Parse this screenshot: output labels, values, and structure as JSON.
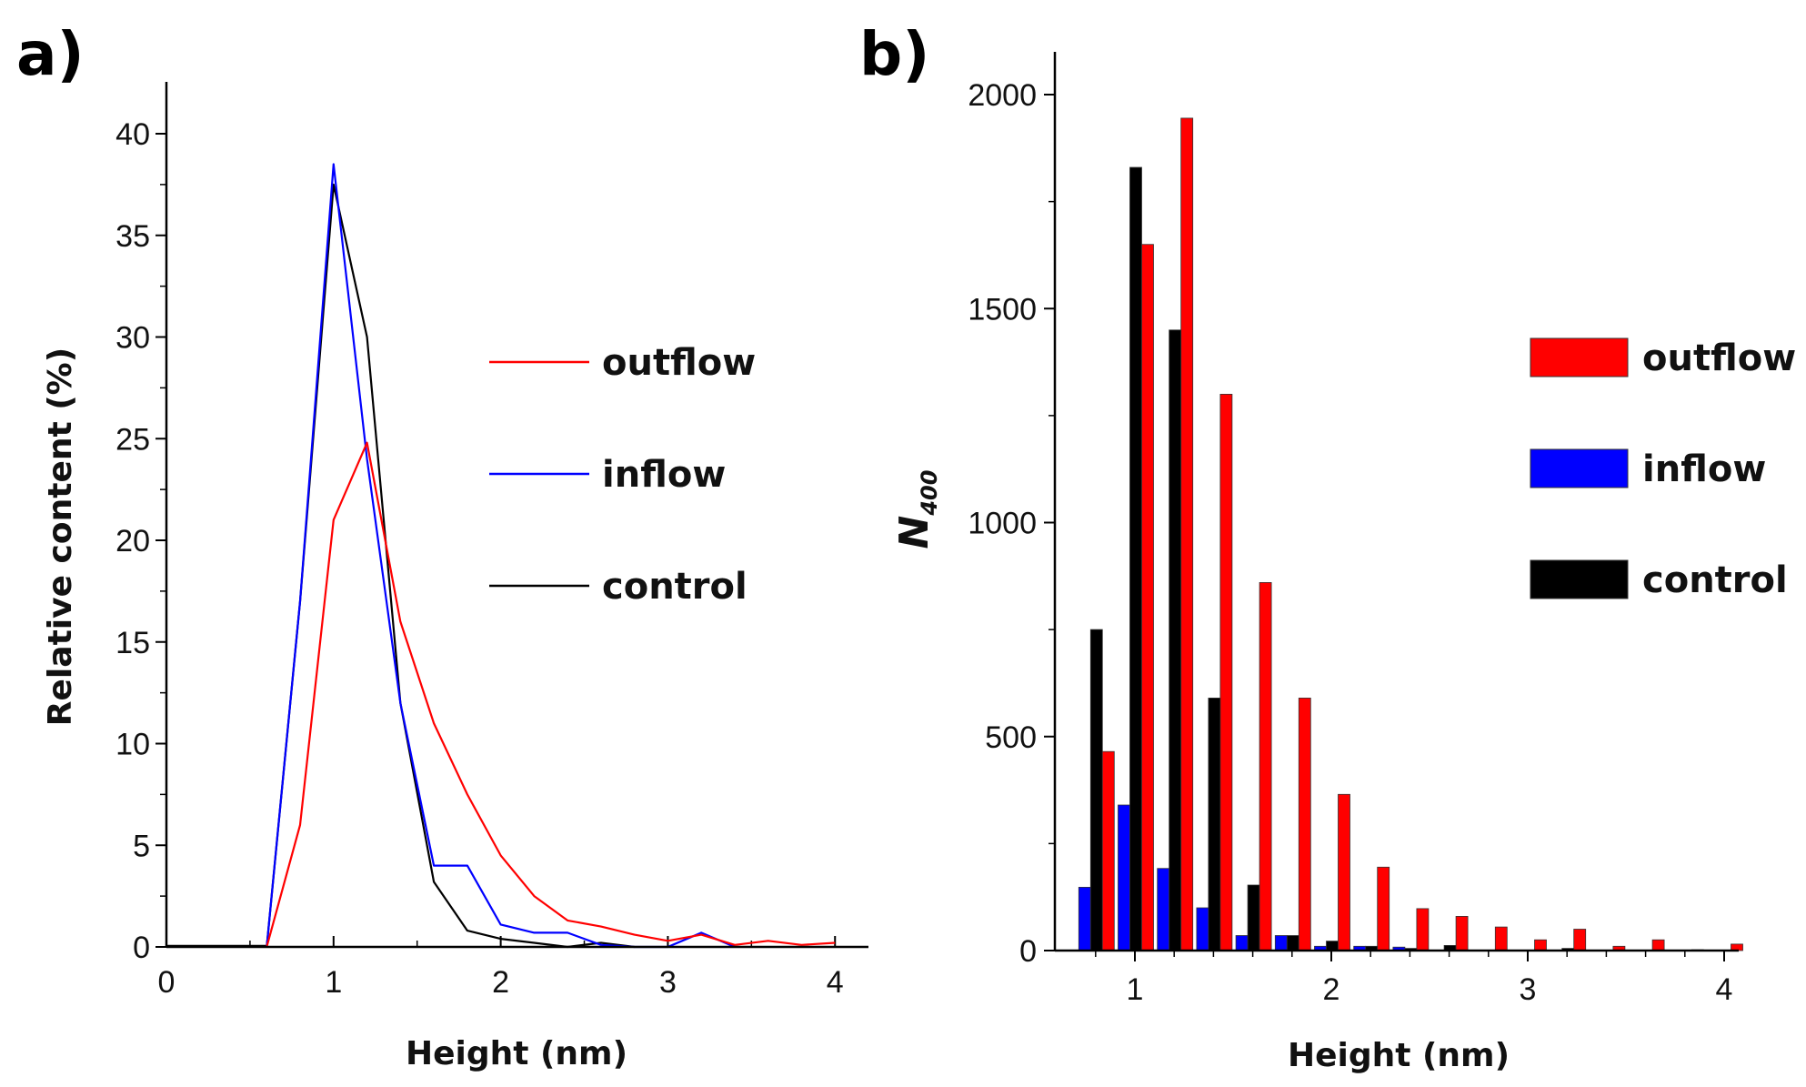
{
  "chart_data": [
    {
      "panel": "a)",
      "type": "line",
      "title": "",
      "xlabel": "Height (nm)",
      "ylabel": "Relative content (%)",
      "xlim": [
        0,
        4.2
      ],
      "ylim": [
        0,
        40
      ],
      "xticks": [
        0,
        1,
        2,
        3,
        4
      ],
      "yticks": [
        0,
        5,
        10,
        15,
        20,
        25,
        30,
        35,
        40
      ],
      "legend_placement": "right",
      "series": [
        {
          "name": "outflow",
          "color": "#ff0000",
          "x": [
            0.6,
            0.8,
            1.0,
            1.2,
            1.4,
            1.6,
            1.8,
            2.0,
            2.2,
            2.4,
            2.6,
            2.8,
            3.0,
            3.2,
            3.4,
            3.6,
            3.8,
            4.0
          ],
          "y": [
            0,
            6,
            21,
            24.8,
            16,
            11,
            7.5,
            4.5,
            2.5,
            1.3,
            1.0,
            0.6,
            0.3,
            0.6,
            0.1,
            0.3,
            0.1,
            0.2
          ]
        },
        {
          "name": "inflow",
          "color": "#0000ff",
          "x": [
            0.6,
            0.8,
            1.0,
            1.2,
            1.4,
            1.6,
            1.8,
            2.0,
            2.2,
            2.4,
            2.6,
            2.8,
            3.0,
            3.2,
            3.4
          ],
          "y": [
            0,
            17,
            38.5,
            24,
            12,
            4,
            4,
            1.1,
            0.7,
            0.7,
            0.1,
            0,
            0,
            0.7,
            0
          ]
        },
        {
          "name": "control",
          "color": "#000000",
          "x": [
            0.6,
            0.8,
            1.0,
            1.2,
            1.4,
            1.6,
            1.8,
            2.0,
            2.2,
            2.4,
            2.6,
            2.8
          ],
          "y": [
            0,
            17,
            37.5,
            30,
            12,
            3.2,
            0.8,
            0.4,
            0.2,
            0,
            0.2,
            0
          ]
        }
      ]
    },
    {
      "panel": "b)",
      "type": "bar",
      "title": "",
      "xlabel": "Height (nm)",
      "ylabel": "N400",
      "xlim": [
        0.65,
        4.1
      ],
      "ylim": [
        0,
        2100
      ],
      "xticks": [
        1,
        2,
        3,
        4
      ],
      "yticks": [
        0,
        500,
        1000,
        1500,
        2000
      ],
      "legend_placement": "right",
      "x": [
        0.8,
        1.0,
        1.2,
        1.4,
        1.6,
        1.8,
        2.0,
        2.2,
        2.4,
        2.6,
        2.8,
        3.0,
        3.2,
        3.4,
        3.6,
        3.8,
        4.0
      ],
      "series": [
        {
          "name": "outflow",
          "color": "#ff0000",
          "values": [
            465,
            1650,
            1945,
            1300,
            860,
            590,
            365,
            195,
            98,
            80,
            55,
            25,
            50,
            10,
            25,
            2,
            15
          ]
        },
        {
          "name": "inflow",
          "color": "#0000ff",
          "values": [
            148,
            340,
            192,
            100,
            35,
            35,
            10,
            10,
            8,
            0,
            0,
            0,
            0,
            0,
            0,
            0,
            0
          ]
        },
        {
          "name": "control",
          "color": "#000000",
          "values": [
            750,
            1830,
            1450,
            590,
            153,
            35,
            22,
            10,
            5,
            12,
            0,
            0,
            5,
            0,
            0,
            0,
            0
          ]
        }
      ]
    }
  ]
}
